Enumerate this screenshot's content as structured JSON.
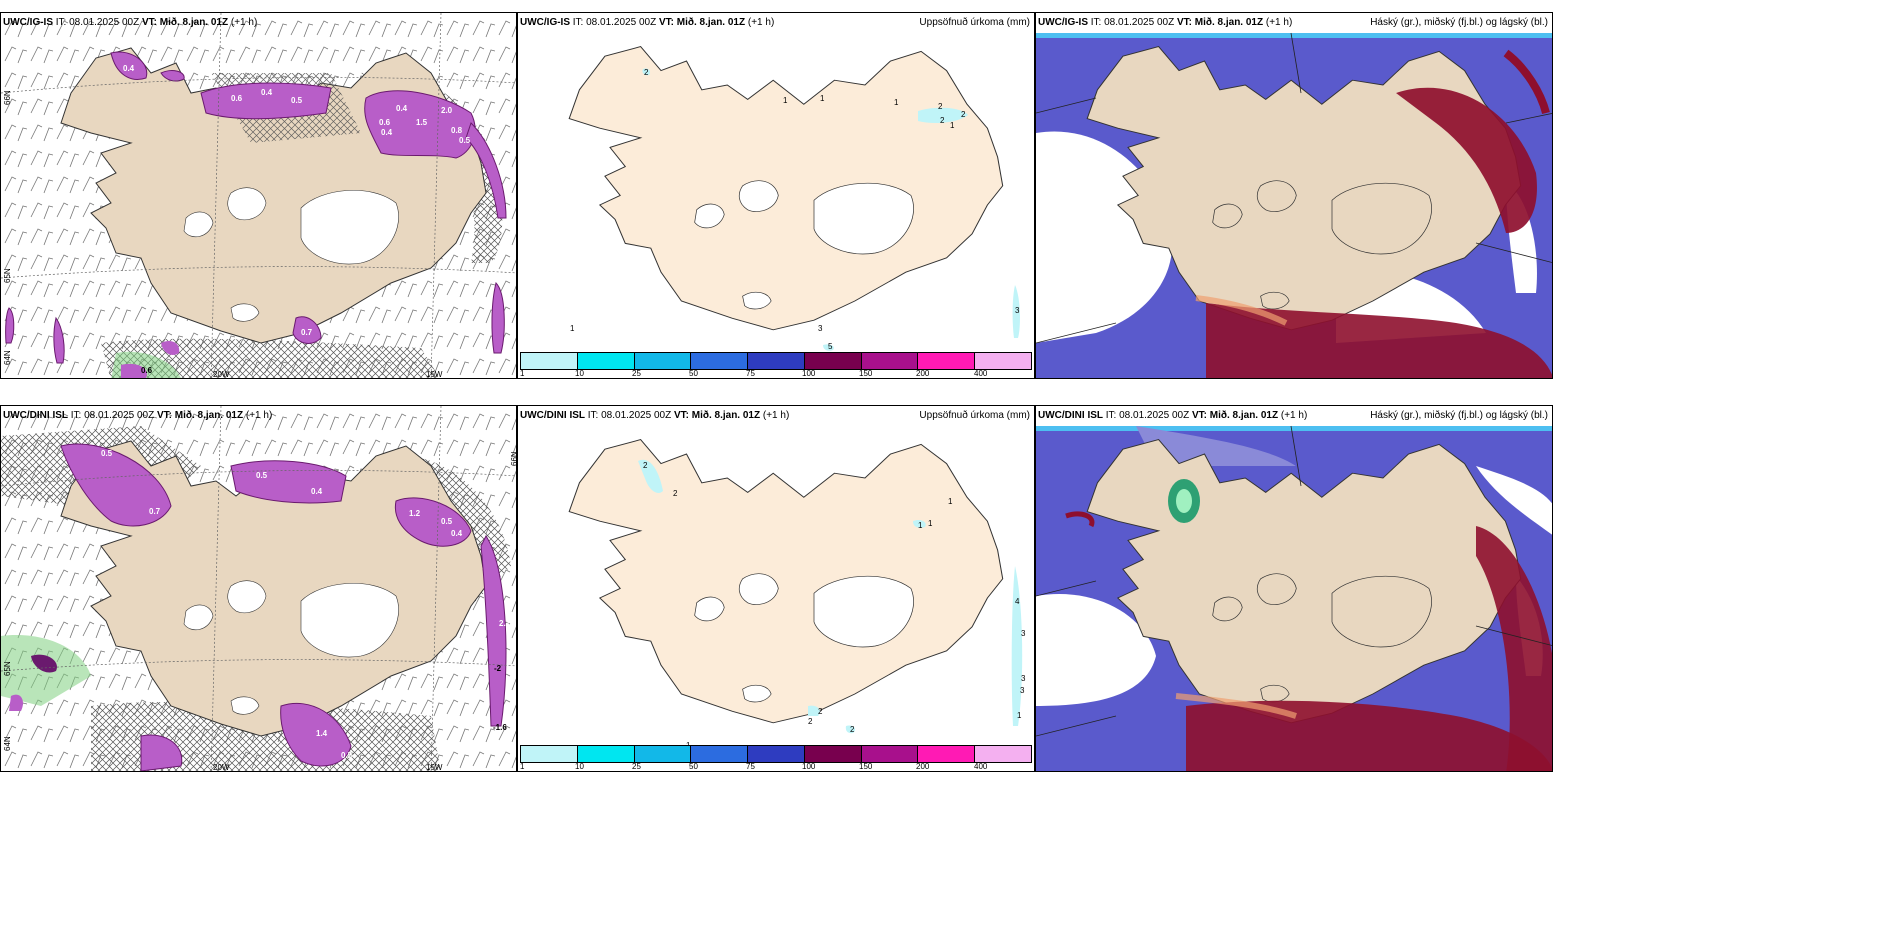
{
  "panels": {
    "p1": {
      "model": "UWC/IG-IS",
      "it_label": "IT:",
      "it": "08.01.2025 00Z",
      "vt_label": "VT:",
      "vt": "Mið. 8.jan. 01Z",
      "offset": "(+1 h)"
    },
    "p2": {
      "model": "UWC/IG-IS",
      "it_label": "IT:",
      "it": "08.01.2025 00Z",
      "vt_label": "VT:",
      "vt": "Mið. 8.jan. 01Z",
      "offset": "(+1 h)",
      "right_title": "Uppsöfnuð úrkoma (mm)"
    },
    "p3": {
      "model": "UWC/IG-IS",
      "it_label": "IT:",
      "it": "08.01.2025 00Z",
      "vt_label": "VT:",
      "vt": "Mið. 8.jan. 01Z",
      "offset": "(+1 h)",
      "right_title": "Háský (gr.), miðský (fj.bl.) og lágský (bl.)"
    },
    "p4": {
      "model": "UWC/DINI ISL",
      "it_label": "IT:",
      "it": "08.01.2025 00Z",
      "vt_label": "VT:",
      "vt": "Mið. 8.jan. 01Z",
      "offset": "(+1 h)"
    },
    "p5": {
      "model": "UWC/DINI ISL",
      "it_label": "IT:",
      "it": "08.01.2025 00Z",
      "vt_label": "VT:",
      "vt": "Mið. 8.jan. 01Z",
      "offset": "(+1 h)",
      "right_title": "Uppsöfnuð úrkoma (mm)"
    },
    "p6": {
      "model": "UWC/DINI ISL",
      "it_label": "IT:",
      "it": "08.01.2025 00Z",
      "vt_label": "VT:",
      "vt": "Mið. 8.jan. 01Z",
      "offset": "(+1 h)",
      "right_title": "Háský (gr.), miðský (fj.bl.) og lágský (bl.)"
    }
  },
  "graticule": {
    "lat_66": "66N",
    "lat_65": "65N",
    "lat_64": "64N",
    "lon_25": "25W",
    "lon_20": "20W",
    "lon_15": "15W"
  },
  "precip_legend": {
    "labels": [
      "1",
      "10",
      "25",
      "50",
      "75",
      "100",
      "150",
      "200",
      "400"
    ],
    "colors": [
      "#c0f4f8",
      "#00e6f0",
      "#12b8e8",
      "#2c6ce0",
      "#2e3cc0",
      "#78004e",
      "#a8108c",
      "#ff1ab4",
      "#f4b0f0"
    ]
  },
  "colors": {
    "land": "#e8d7c0",
    "land_precip": "#fcecd9",
    "ice": "#ffffff",
    "precip_purple": "#b85ec8",
    "precip_dark": "#6a1a6e",
    "cloud_low": "#5a5acc",
    "cloud_mid": "#3ab8f0",
    "cloud_high": "#8e0f2e"
  },
  "precip_values_top": [
    "0.4",
    "0.6",
    "0.4",
    "1.5",
    "2.0",
    "0.8",
    "0.5",
    "0.4",
    "0.6",
    "0.4",
    "0.5",
    "0.7",
    "0.6"
  ],
  "precip_values_bottom": [
    "0.5",
    "0.5",
    "0.4",
    "0.7",
    "1.2",
    "0.5",
    "0.4",
    "2.1",
    "-2",
    "-1.6",
    "1.4",
    "0.5"
  ],
  "accum_top": [
    "2",
    "1",
    "1",
    "1",
    "2",
    "2",
    "1",
    "2",
    "3",
    "1",
    "3",
    "5"
  ],
  "accum_bottom": [
    "2",
    "2",
    "1",
    "1",
    "1",
    "4",
    "3",
    "3",
    "3",
    "1",
    "2",
    "2",
    "2",
    "1"
  ]
}
